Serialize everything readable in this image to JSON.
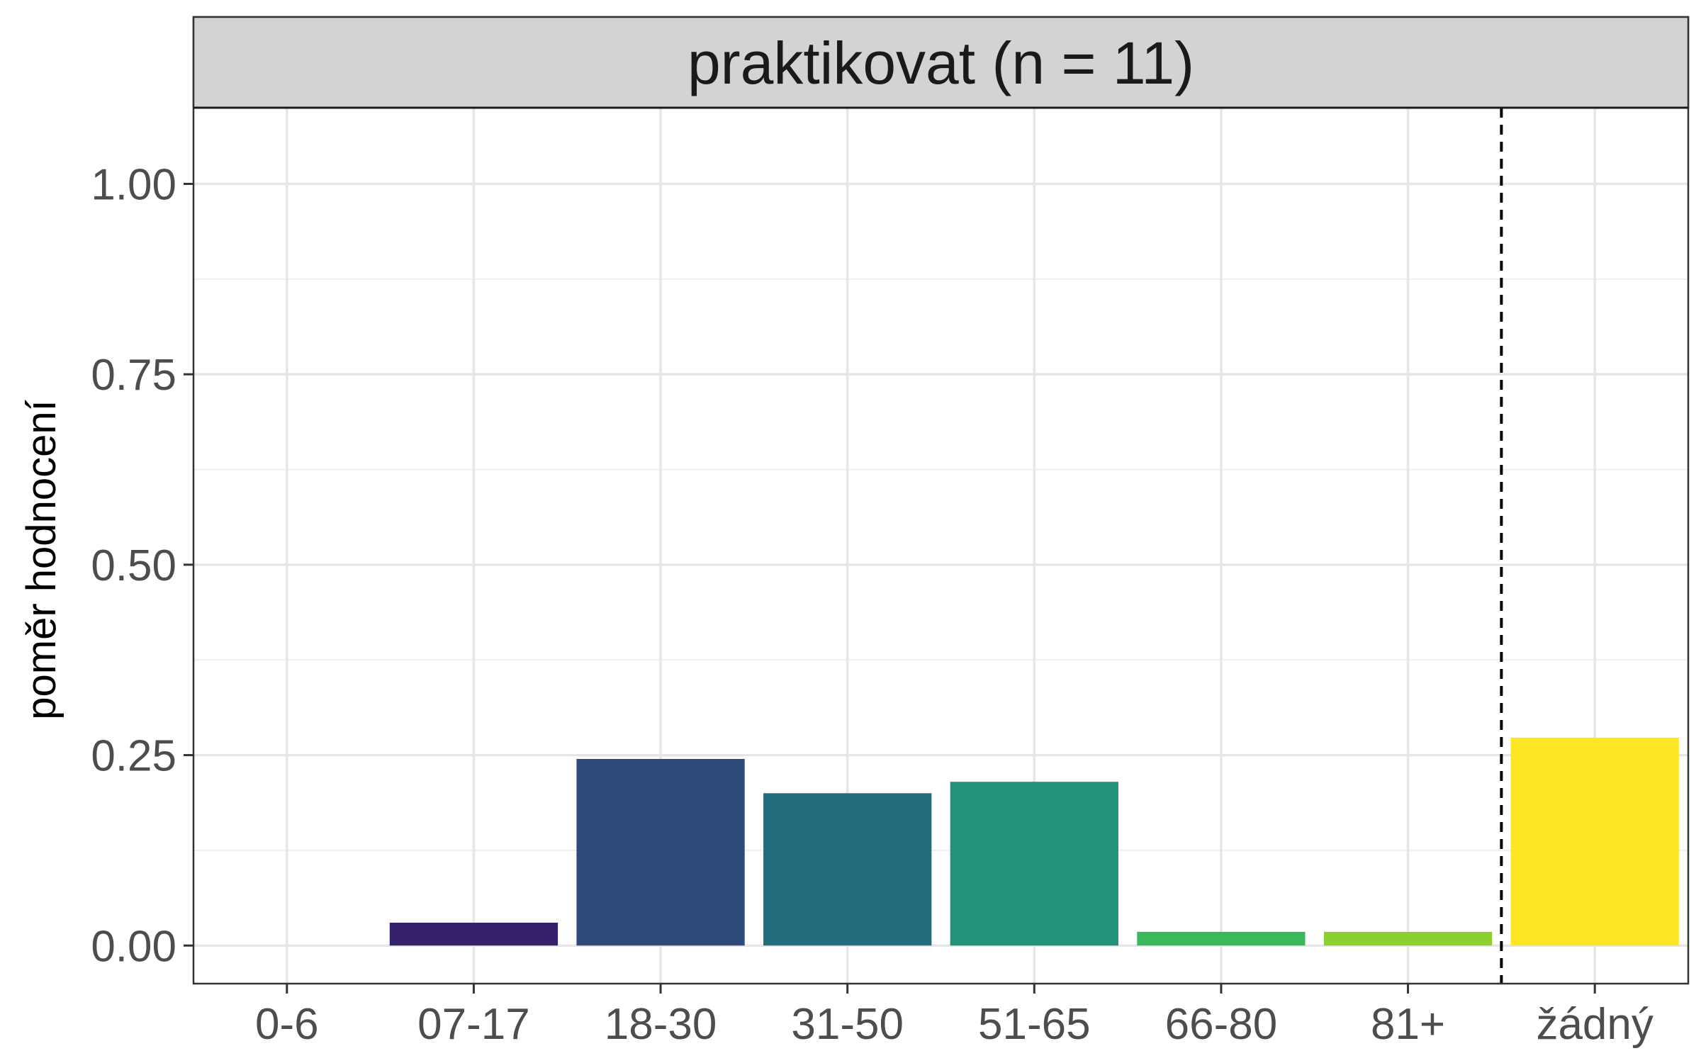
{
  "chart_data": {
    "type": "bar",
    "title": "praktikovat (n = 11)",
    "xlabel": "",
    "ylabel": "poměr hodnocení",
    "categories": [
      "0-6",
      "07-17",
      "18-30",
      "31-50",
      "51-65",
      "66-80",
      "81+",
      "žádný"
    ],
    "values": [
      0.0,
      0.03,
      0.245,
      0.2,
      0.215,
      0.018,
      0.018,
      0.273
    ],
    "colors": [
      "#440154",
      "#35216b",
      "#2c4a7a",
      "#226d7c",
      "#21937a",
      "#3bb85a",
      "#8bd02e",
      "#fde725"
    ],
    "ylim": [
      -0.05,
      1.1
    ],
    "yticks": [
      0.0,
      0.25,
      0.5,
      0.75,
      1.0
    ],
    "ytick_labels": [
      "0.00",
      "0.25",
      "0.50",
      "0.75",
      "1.00"
    ],
    "separator_after_category": "81+",
    "grid": true,
    "legend": "none"
  }
}
